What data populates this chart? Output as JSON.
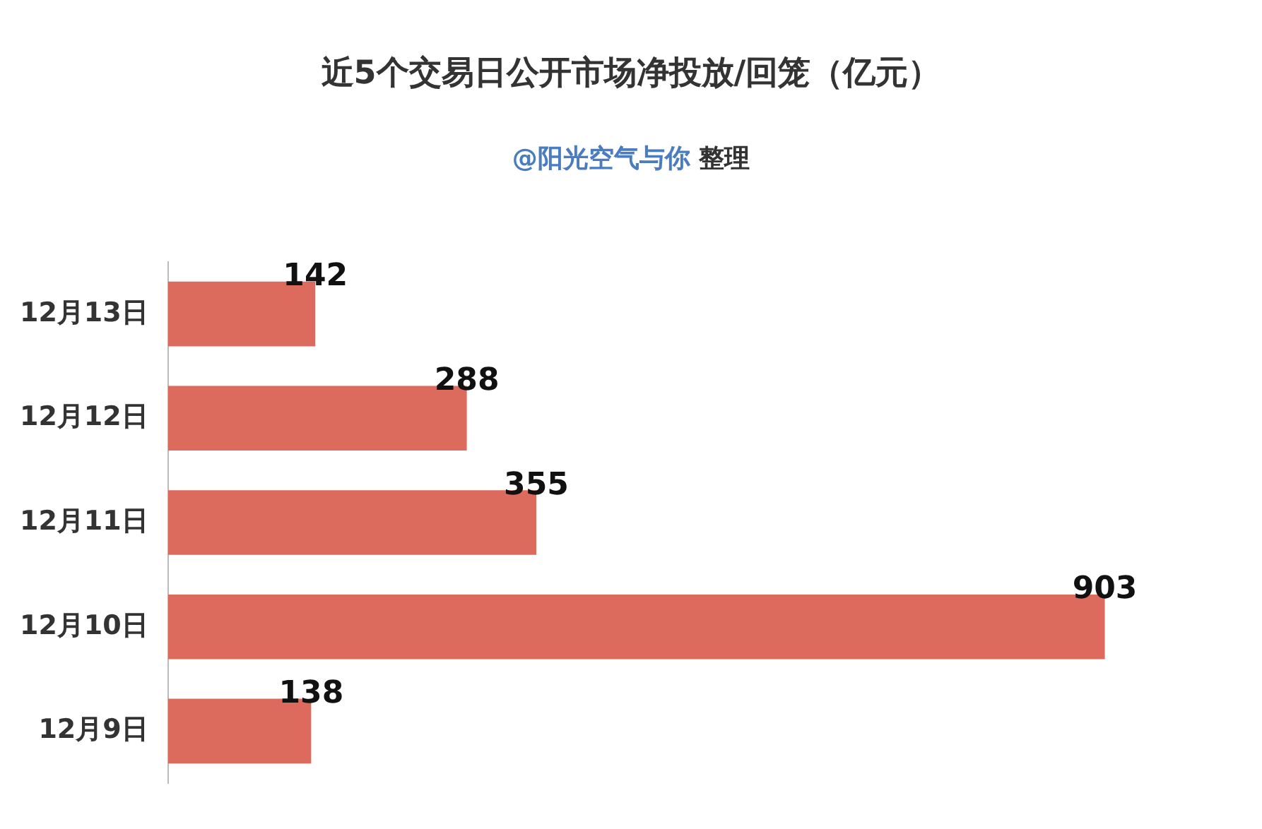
{
  "chart_data": {
    "type": "bar",
    "orientation": "horizontal",
    "title": "近5个交易日公开市场净投放/回笼（亿元）",
    "subtitle": "@阳光空气与你 整理",
    "categories": [
      "12月13日",
      "12月12日",
      "12月11日",
      "12月10日",
      "12月9日"
    ],
    "values": [
      142,
      288,
      355,
      903,
      138
    ],
    "color": "#dc6a5d",
    "data_labels": true
  }
}
